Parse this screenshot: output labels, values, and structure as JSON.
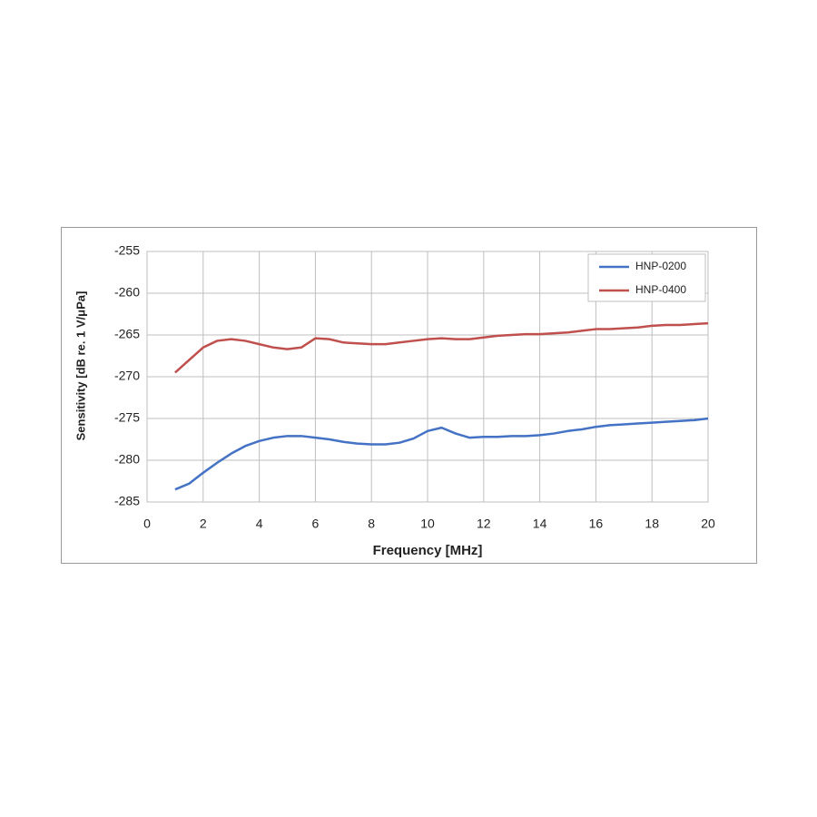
{
  "chart_data": {
    "type": "line",
    "x_label": "Frequency [MHz]",
    "y_label": "Sensitivity [dB re. 1 V/μPa]",
    "x": [
      1,
      1.5,
      2,
      2.5,
      3,
      3.5,
      4,
      4.5,
      5,
      5.5,
      6,
      6.5,
      7,
      7.5,
      8,
      8.5,
      9,
      9.5,
      10,
      10.5,
      11,
      11.5,
      12,
      12.5,
      13,
      13.5,
      14,
      14.5,
      15,
      15.5,
      16,
      16.5,
      17,
      17.5,
      18,
      18.5,
      19,
      19.5,
      20
    ],
    "series": [
      {
        "name": "HNP-0200",
        "color": "#4472c4",
        "values": [
          -283.5,
          -282.8,
          -281.5,
          -280.3,
          -279.2,
          -278.3,
          -277.7,
          -277.3,
          -277.1,
          -277.1,
          -277.3,
          -277.5,
          -277.8,
          -278,
          -278.1,
          -278.1,
          -277.9,
          -277.4,
          -276.5,
          -276.1,
          -276.8,
          -277.3,
          -277.2,
          -277.2,
          -277.1,
          -277.1,
          -277,
          -276.8,
          -276.5,
          -276.3,
          -276,
          -275.8,
          -275.7,
          -275.6,
          -275.5,
          -275.4,
          -275.3,
          -275.2,
          -275
        ]
      },
      {
        "name": "HNP-0400",
        "color": "#c0504d",
        "values": [
          -269.5,
          -268,
          -266.5,
          -265.7,
          -265.5,
          -265.7,
          -266.1,
          -266.5,
          -266.7,
          -266.5,
          -265.4,
          -265.5,
          -265.9,
          -266,
          -266.1,
          -266.1,
          -265.9,
          -265.7,
          -265.5,
          -265.4,
          -265.5,
          -265.5,
          -265.3,
          -265.1,
          -265,
          -264.9,
          -264.9,
          -264.8,
          -264.7,
          -264.5,
          -264.3,
          -264.3,
          -264.2,
          -264.1,
          -263.9,
          -263.8,
          -263.8,
          -263.7,
          -263.6
        ]
      }
    ],
    "xlim": [
      0,
      20
    ],
    "xticks": [
      0,
      2,
      4,
      6,
      8,
      10,
      12,
      14,
      16,
      18,
      20
    ],
    "ylim": [
      -285,
      -255
    ],
    "yticks": [
      -285,
      -280,
      -275,
      -270,
      -265,
      -260,
      -255
    ],
    "grid": true,
    "legend": "upper-right"
  }
}
